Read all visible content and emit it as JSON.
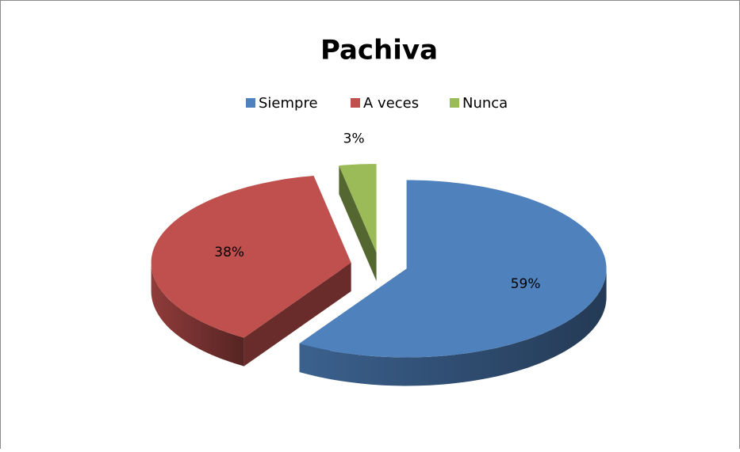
{
  "chart_data": {
    "type": "pie",
    "title": "Pachiva",
    "categories": [
      "Siempre",
      "A veces",
      "Nunca"
    ],
    "values": [
      59,
      38,
      3
    ],
    "value_labels": [
      "59%",
      "38%",
      "3%"
    ],
    "colors": [
      "#4f81bd",
      "#c0504d",
      "#9bbb59"
    ],
    "legend": "top"
  }
}
